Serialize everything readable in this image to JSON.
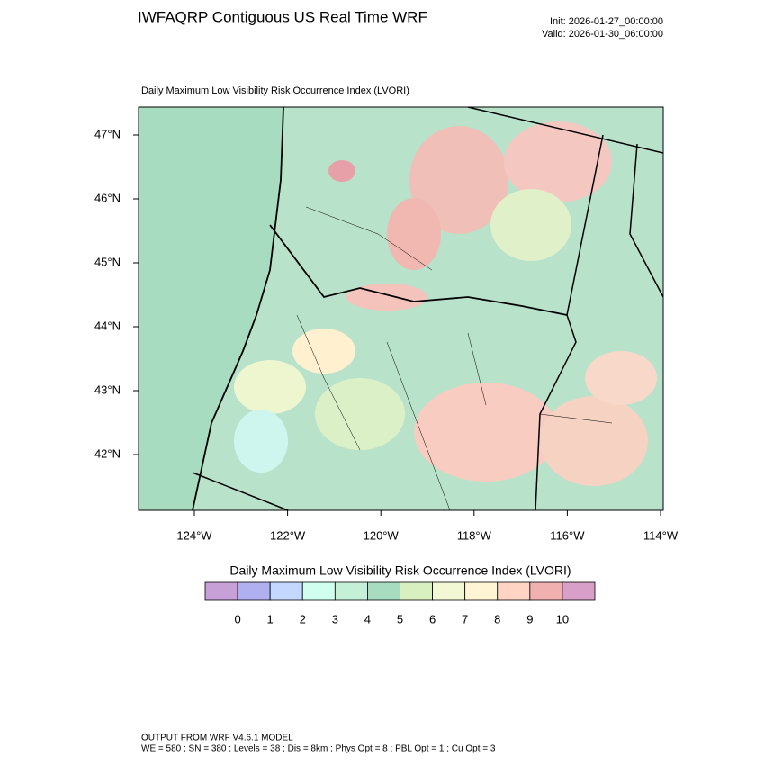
{
  "header": {
    "title": "IWFAQRP Contiguous US Real Time WRF",
    "init": "Init: 2026-01-27_00:00:00",
    "valid": "Valid: 2026-01-30_06:00:00"
  },
  "map": {
    "subtitle": "Daily Maximum Low Visibility Risk Occurrence Index   (LVORI)",
    "lat_labels": [
      "47°N",
      "46°N",
      "45°N",
      "44°N",
      "43°N",
      "42°N"
    ],
    "lon_labels": [
      "124°W",
      "122°W",
      "120°W",
      "118°W",
      "116°W",
      "114°W"
    ]
  },
  "colorbar": {
    "title": "Daily Maximum Low Visibility Risk Occurrence Index  (LVORI)",
    "labels": [
      "0",
      "1",
      "2",
      "3",
      "4",
      "5",
      "6",
      "7",
      "8",
      "9",
      "10"
    ],
    "colors": [
      "#c8a0d8",
      "#b0b0f0",
      "#c4d8ff",
      "#d0fff0",
      "#c4f0d8",
      "#a8dcc0",
      "#d8f0c0",
      "#f2f8d4",
      "#fff4d4",
      "#ffd4c4",
      "#f0b0b0",
      "#d8a0c8"
    ]
  },
  "footer": {
    "line1": "OUTPUT FROM WRF V4.6.1 MODEL",
    "line2": "WE = 580 ; SN = 380 ; Levels = 38 ; Dis = 8km ; Phys Opt = 8 ; PBL Opt = 1 ; Cu Opt = 3"
  }
}
